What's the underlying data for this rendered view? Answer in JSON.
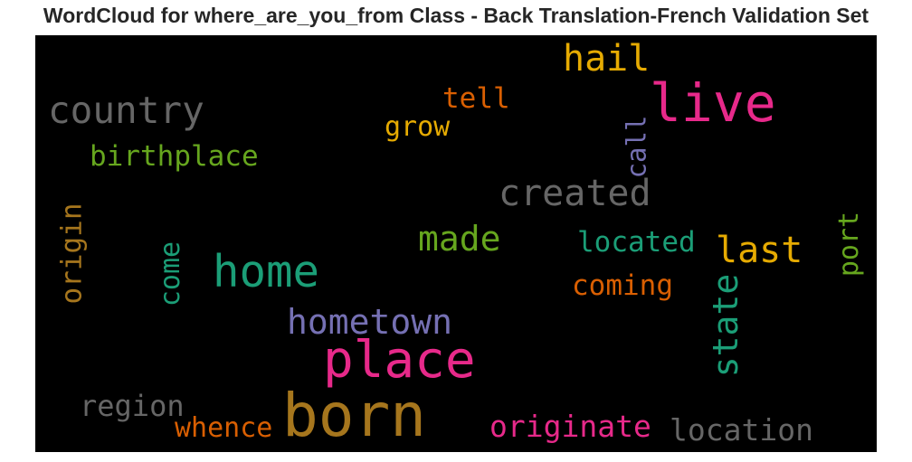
{
  "title": "WordCloud for where_are_you_from Class - Back Translation-French Validation Set",
  "words": [
    {
      "text": "hail",
      "color": "#e6ab02"
    },
    {
      "text": "live",
      "color": "#e7298a"
    },
    {
      "text": "tell",
      "color": "#d95f02"
    },
    {
      "text": "country",
      "color": "#666666"
    },
    {
      "text": "grow",
      "color": "#e6ab02"
    },
    {
      "text": "call",
      "color": "#7570b3",
      "orientation": "vertical"
    },
    {
      "text": "birthplace",
      "color": "#66a61e"
    },
    {
      "text": "created",
      "color": "#666666"
    },
    {
      "text": "origin",
      "color": "#a6761d",
      "orientation": "vertical"
    },
    {
      "text": "made",
      "color": "#66a61e"
    },
    {
      "text": "located",
      "color": "#1b9e77"
    },
    {
      "text": "port",
      "color": "#66a61e",
      "orientation": "vertical"
    },
    {
      "text": "come",
      "color": "#1b9e77",
      "orientation": "vertical"
    },
    {
      "text": "home",
      "color": "#1b9e77"
    },
    {
      "text": "last",
      "color": "#e6ab02"
    },
    {
      "text": "coming",
      "color": "#d95f02"
    },
    {
      "text": "state",
      "color": "#1b9e77",
      "orientation": "vertical"
    },
    {
      "text": "hometown",
      "color": "#7570b3"
    },
    {
      "text": "place",
      "color": "#e7298a"
    },
    {
      "text": "region",
      "color": "#666666"
    },
    {
      "text": "born",
      "color": "#a6761d"
    },
    {
      "text": "whence",
      "color": "#d95f02"
    },
    {
      "text": "originate",
      "color": "#e7298a"
    },
    {
      "text": "location",
      "color": "#666666"
    }
  ]
}
